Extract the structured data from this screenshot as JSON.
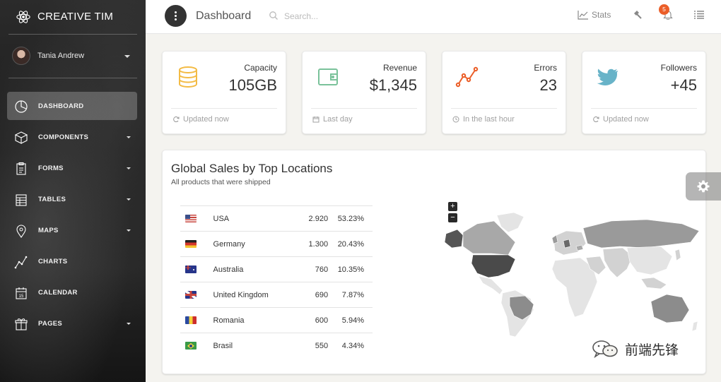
{
  "sidebar": {
    "brand": "CREATIVE TIM",
    "user": {
      "name": "Tania Andrew"
    },
    "items": [
      {
        "label": "DASHBOARD",
        "icon": "chart-pie-icon",
        "active": true,
        "caret": false
      },
      {
        "label": "COMPONENTS",
        "icon": "box-icon",
        "active": false,
        "caret": true
      },
      {
        "label": "FORMS",
        "icon": "clipboard-icon",
        "active": false,
        "caret": true
      },
      {
        "label": "TABLES",
        "icon": "table-icon",
        "active": false,
        "caret": true
      },
      {
        "label": "MAPS",
        "icon": "map-pin-icon",
        "active": false,
        "caret": true
      },
      {
        "label": "CHARTS",
        "icon": "line-chart-icon",
        "active": false,
        "caret": false
      },
      {
        "label": "CALENDAR",
        "icon": "calendar-icon",
        "active": false,
        "caret": false,
        "icon_text": "15"
      },
      {
        "label": "PAGES",
        "icon": "gift-icon",
        "active": false,
        "caret": true
      }
    ]
  },
  "topbar": {
    "title": "Dashboard",
    "search_placeholder": "Search...",
    "stats_label": "Stats",
    "notifications_count": "5"
  },
  "stats": [
    {
      "label": "Capacity",
      "value": "105GB",
      "footer": "Updated now",
      "icon": "database-icon",
      "color": "#f3bb45"
    },
    {
      "label": "Revenue",
      "value": "$1,345",
      "footer": "Last day",
      "icon": "wallet-icon",
      "color": "#7ac29a"
    },
    {
      "label": "Errors",
      "value": "23",
      "footer": "In the last hour",
      "icon": "pulse-icon",
      "color": "#eb5e28"
    },
    {
      "label": "Followers",
      "value": "+45",
      "footer": "Updated now",
      "icon": "twitter-icon",
      "color": "#68b3c8"
    }
  ],
  "sales": {
    "title": "Global Sales by Top Locations",
    "subtitle": "All products that were shipped",
    "rows": [
      {
        "country": "USA",
        "sales": "2.920",
        "percent": "53.23%"
      },
      {
        "country": "Germany",
        "sales": "1.300",
        "percent": "20.43%"
      },
      {
        "country": "Australia",
        "sales": "760",
        "percent": "10.35%"
      },
      {
        "country": "United Kingdom",
        "sales": "690",
        "percent": "7.87%"
      },
      {
        "country": "Romania",
        "sales": "600",
        "percent": "5.94%"
      },
      {
        "country": "Brasil",
        "sales": "550",
        "percent": "4.34%"
      }
    ],
    "zoom_in": "+",
    "zoom_out": "−"
  },
  "watermark": {
    "text": "前端先锋"
  }
}
